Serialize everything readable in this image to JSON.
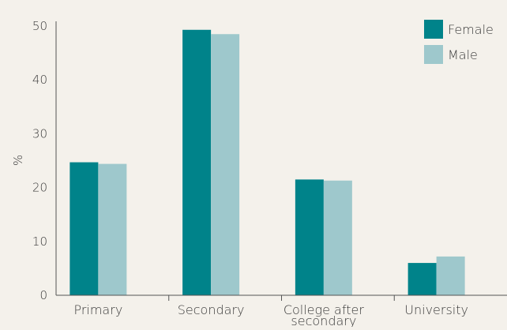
{
  "chart_data": {
    "type": "bar",
    "title": "",
    "xlabel": "",
    "ylabel": "%",
    "ylim": [
      0,
      50
    ],
    "yticks": [
      0,
      10,
      20,
      30,
      40,
      50
    ],
    "categories": [
      "Primary",
      "Secondary",
      "College after secondary",
      "University"
    ],
    "category_lines": [
      [
        "Primary"
      ],
      [
        "Secondary"
      ],
      [
        "College after",
        "secondary"
      ],
      [
        "University"
      ]
    ],
    "series": [
      {
        "name": "Female",
        "color": "#00838a",
        "values": [
          24.7,
          49.3,
          21.5,
          6.0
        ]
      },
      {
        "name": "Male",
        "color": "#9ec8cc",
        "values": [
          24.4,
          48.5,
          21.3,
          7.2
        ]
      }
    ],
    "grid": false,
    "legend_position": "top-right"
  }
}
